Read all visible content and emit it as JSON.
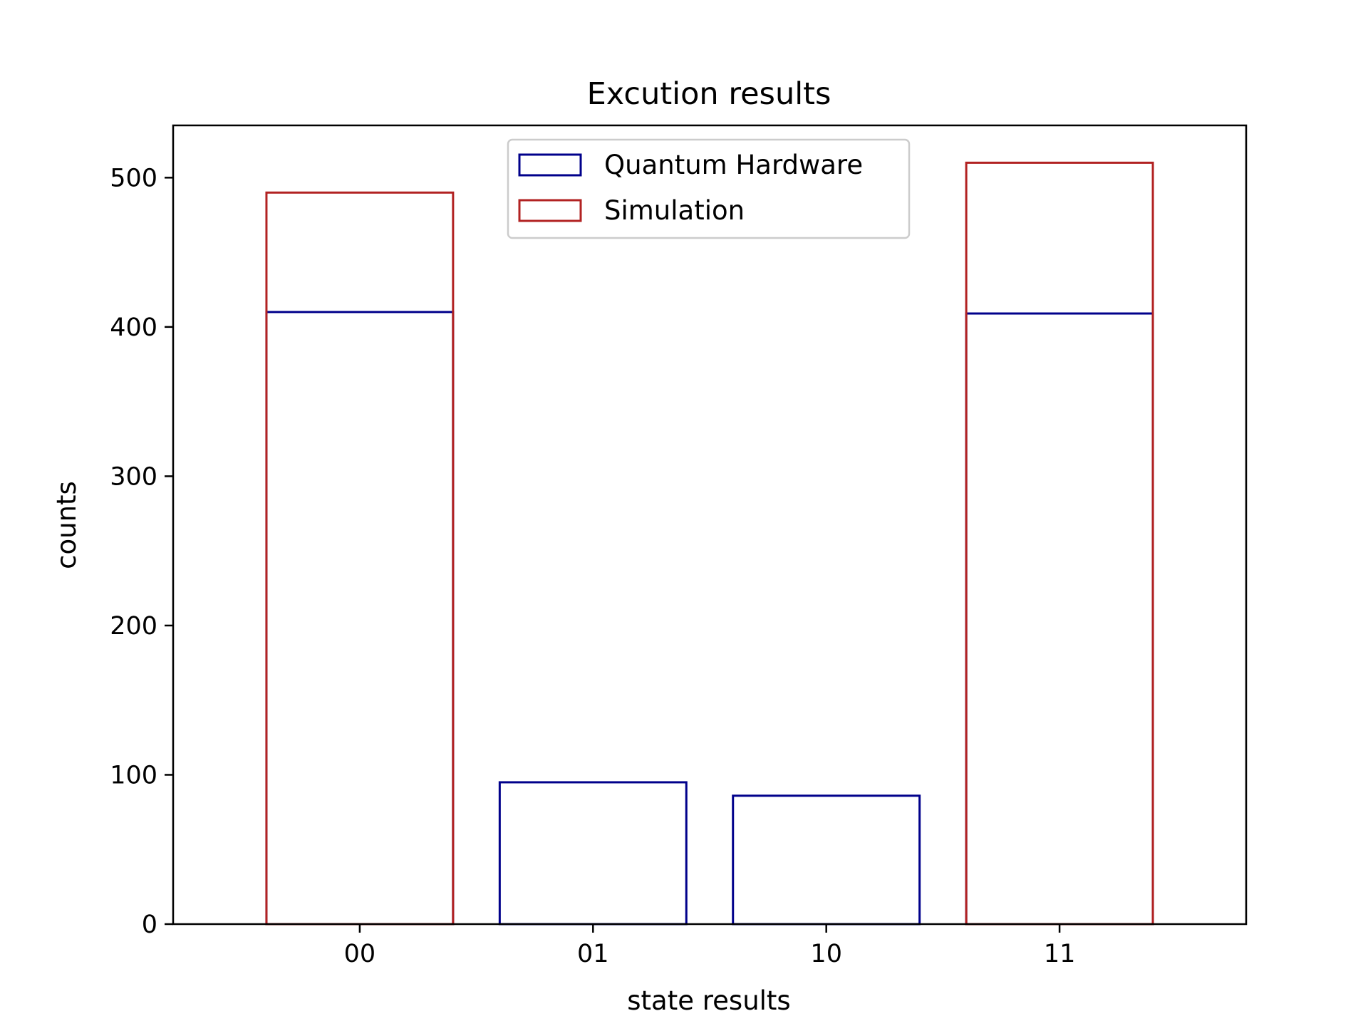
{
  "chart_data": {
    "type": "bar",
    "title": "Excution results",
    "xlabel": "state results",
    "ylabel": "counts",
    "categories": [
      "00",
      "01",
      "10",
      "11"
    ],
    "ylim": [
      0,
      535
    ],
    "yticks": [
      0,
      100,
      200,
      300,
      400,
      500
    ],
    "grid": false,
    "legend_position": "top-center",
    "series": [
      {
        "name": "Quantum Hardware",
        "color": "#00008b",
        "values": [
          410,
          95,
          86,
          409
        ]
      },
      {
        "name": "Simulation",
        "color": "#b22222",
        "values": [
          490,
          0,
          0,
          510
        ]
      }
    ]
  }
}
